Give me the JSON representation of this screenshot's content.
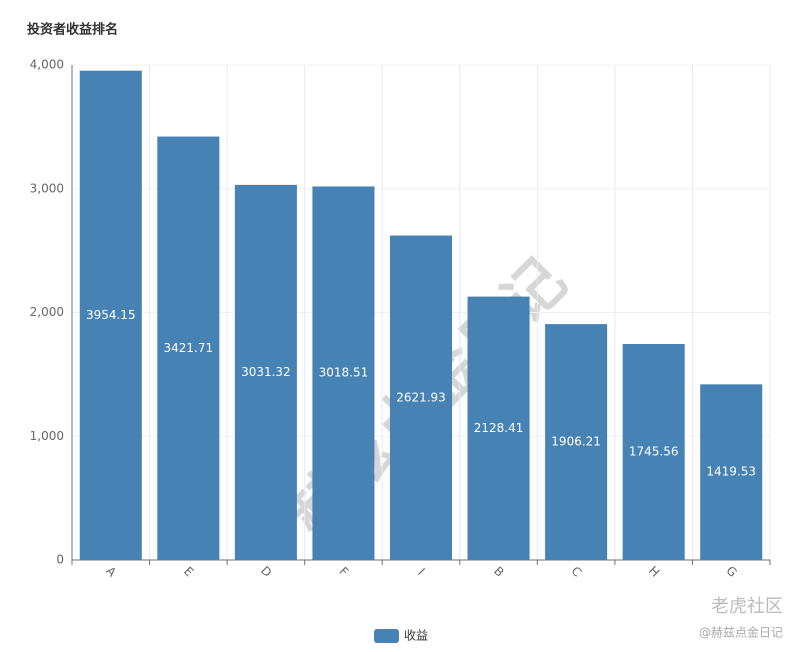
{
  "chart_data": {
    "type": "bar",
    "title": "投资者收益排名",
    "categories": [
      "A",
      "E",
      "D",
      "F",
      "I",
      "B",
      "C",
      "H",
      "G"
    ],
    "series": [
      {
        "name": "收益",
        "color": "#4682b4",
        "values": [
          3954.15,
          3421.71,
          3031.32,
          3018.51,
          2621.93,
          2128.41,
          1906.21,
          1745.56,
          1419.53
        ]
      }
    ],
    "ylim": [
      0,
      4000
    ],
    "yticks": [
      0,
      {
        "value": 1000,
        "label": "1,000"
      },
      {
        "value": 2000,
        "label": "2,000"
      },
      {
        "value": 3000,
        "label": "3,000"
      },
      {
        "value": 4000,
        "label": "4,000"
      }
    ],
    "grid": true,
    "legend": "bottom",
    "watermark": "赫兹点金日记",
    "footer": {
      "brand": "老虎社区",
      "author": "@赫兹点金日记"
    }
  }
}
